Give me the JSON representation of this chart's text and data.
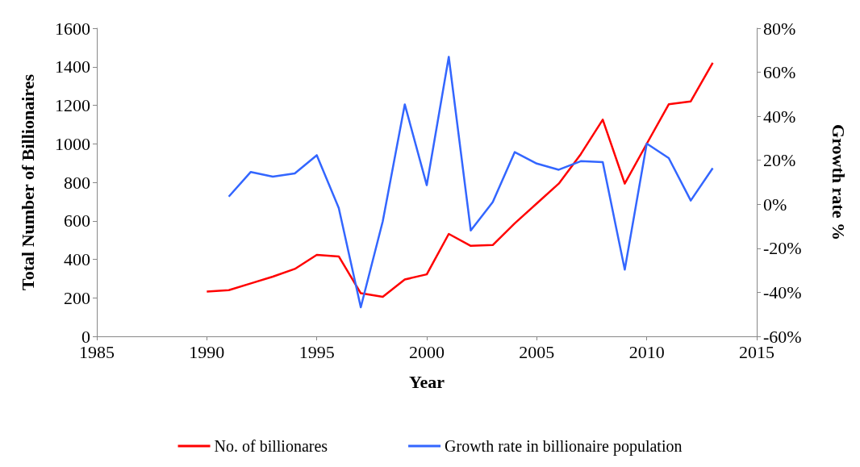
{
  "chart_data": {
    "type": "line",
    "xlabel": "Year",
    "ylabel": "Total Number of Billionaires",
    "y2label": "Growth rate %",
    "xlim": [
      1985,
      2015
    ],
    "xticks": [
      1985,
      1990,
      1995,
      2000,
      2005,
      2010,
      2015
    ],
    "ylim": [
      0,
      1600
    ],
    "yticks": [
      0,
      200,
      400,
      600,
      800,
      1000,
      1200,
      1400,
      1600
    ],
    "y2lim": [
      -60,
      80
    ],
    "y2ticks": [
      {
        "value": -60,
        "label": "-60%"
      },
      {
        "value": -40,
        "label": "-40%"
      },
      {
        "value": -20,
        "label": "-20%"
      },
      {
        "value": 0,
        "label": "0%"
      },
      {
        "value": 20,
        "label": "20%"
      },
      {
        "value": 40,
        "label": "40%"
      },
      {
        "value": 60,
        "label": "60%"
      },
      {
        "value": 80,
        "label": "80%"
      }
    ],
    "grid": false,
    "legend": "bottom",
    "marker": "none",
    "line_style": "solid",
    "series": [
      {
        "name": "No. of billionares",
        "color": "#ff0000",
        "x": [
          1990,
          1991,
          1992,
          1993,
          1994,
          1995,
          1996,
          1997,
          1998,
          1999,
          2000,
          2001,
          2002,
          2003,
          2004,
          2005,
          2006,
          2007,
          2008,
          2009,
          2010,
          2011,
          2012,
          2013
        ],
        "values": [
          232,
          240,
          275,
          310,
          350,
          423,
          415,
          224,
          205,
          295,
          322,
          532,
          470,
          474,
          587,
          690,
          793,
          946,
          1125,
          793,
          1000,
          1205,
          1220,
          1420
        ]
      },
      {
        "name": "Growth rate in billionaire population",
        "color": "#3366ff",
        "axis": "y2",
        "x": [
          1991,
          1992,
          1993,
          1994,
          1995,
          1996,
          1997,
          1998,
          1999,
          2000,
          2001,
          2002,
          2003,
          2004,
          2005,
          2006,
          2007,
          2008,
          2009,
          2010,
          2011,
          2012,
          2013
        ],
        "values": [
          3.5,
          14.7,
          12.6,
          14,
          22.3,
          -1.7,
          -46.8,
          -7.7,
          45.4,
          8.7,
          67,
          -11.9,
          1,
          23.7,
          18.5,
          15.7,
          19.6,
          19.2,
          -29.7,
          27.6,
          21,
          1.7,
          16.4
        ]
      }
    ]
  }
}
